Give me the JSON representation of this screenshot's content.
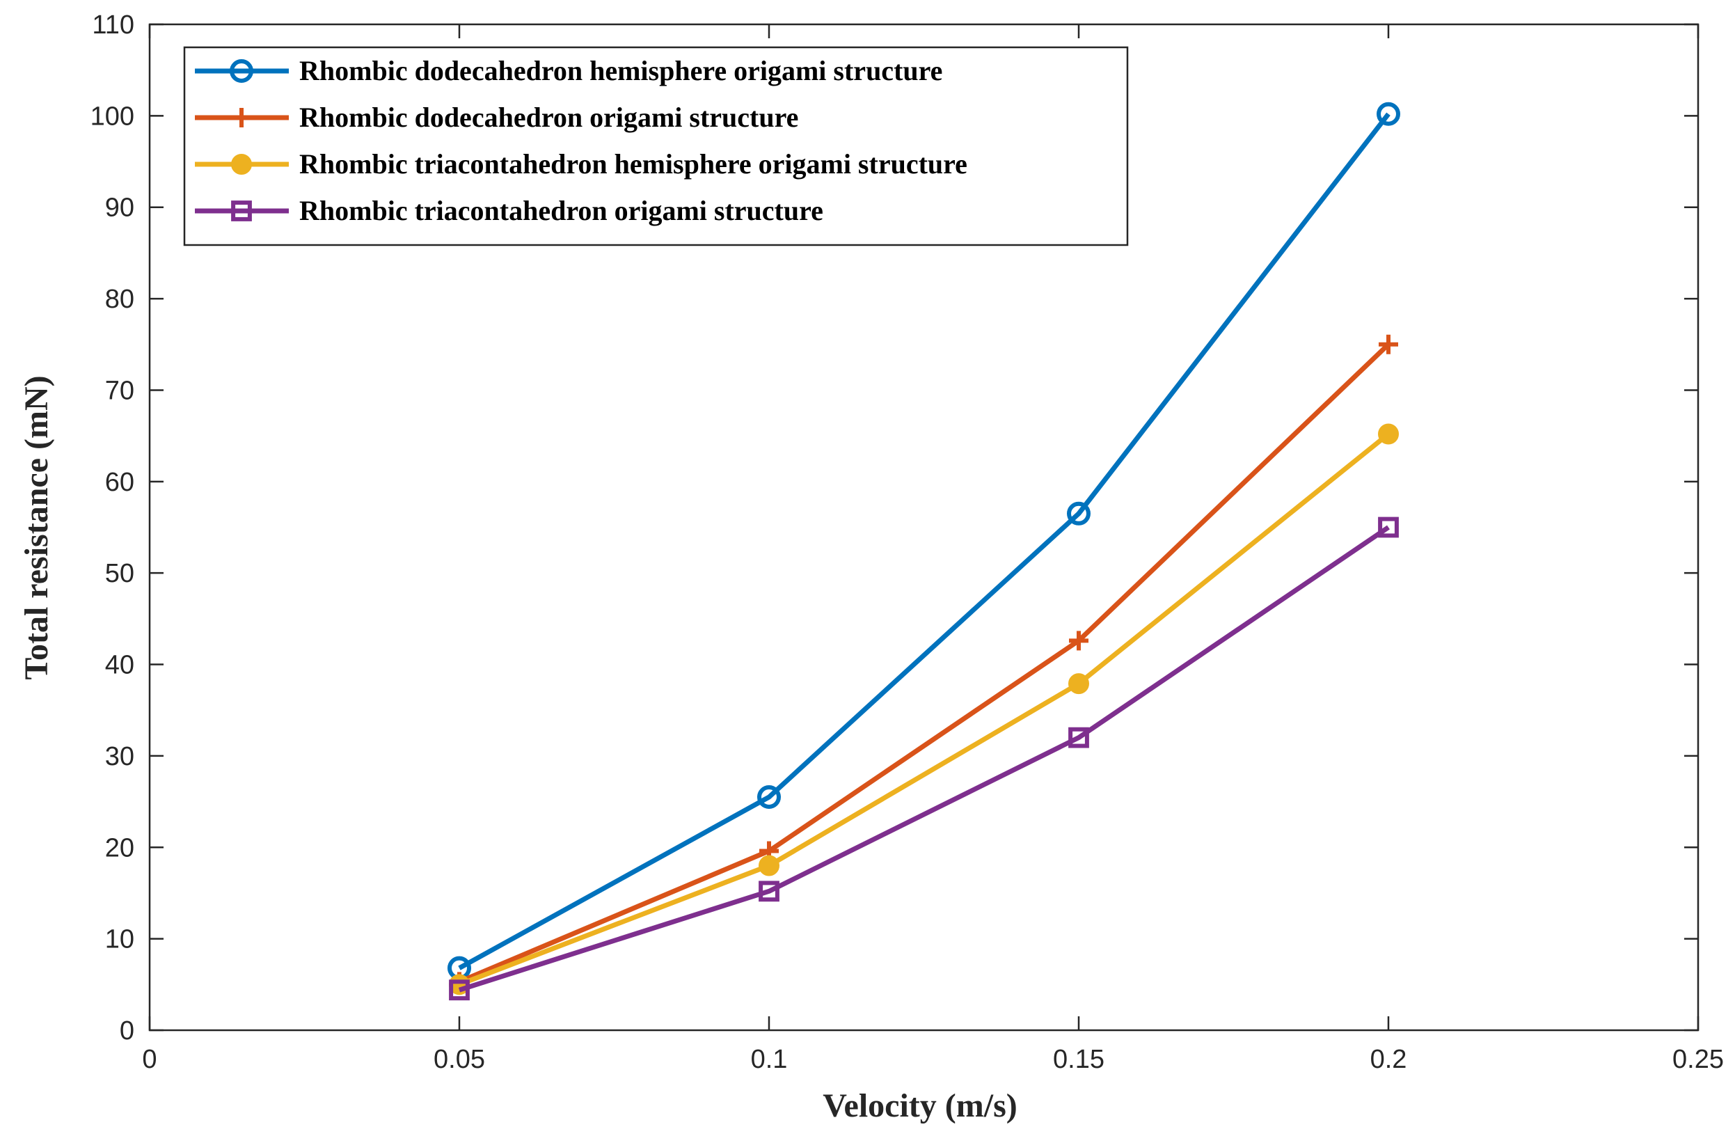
{
  "chart_data": {
    "type": "line",
    "title": "",
    "xlabel": "Velocity (m/s)",
    "ylabel": "Total resistance (mN)",
    "xlim": [
      0,
      0.25
    ],
    "ylim": [
      0,
      110
    ],
    "xticks": [
      0,
      0.05,
      0.1,
      0.15,
      0.2,
      0.25
    ],
    "xtick_labels": [
      "0",
      "0.05",
      "0.1",
      "0.15",
      "0.2",
      "0.25"
    ],
    "yticks": [
      0,
      10,
      20,
      30,
      40,
      50,
      60,
      70,
      80,
      90,
      100,
      110
    ],
    "ytick_labels": [
      "0",
      "10",
      "20",
      "30",
      "40",
      "50",
      "60",
      "70",
      "80",
      "90",
      "100",
      "110"
    ],
    "grid": false,
    "legend_position": "top-left",
    "x": [
      0.05,
      0.1,
      0.15,
      0.2
    ],
    "series": [
      {
        "name": "Rhombic dodecahedron hemisphere origami structure",
        "marker": "circle-open",
        "color": "#0072BD",
        "values": [
          6.8,
          25.5,
          56.5,
          100.2
        ]
      },
      {
        "name": "Rhombic dodecahedron origami structure",
        "marker": "plus",
        "color": "#D95319",
        "values": [
          5.3,
          19.6,
          42.6,
          75.0
        ]
      },
      {
        "name": "Rhombic triacontahedron hemisphere origami structure",
        "marker": "circle-filled",
        "color": "#EDB120",
        "values": [
          5.0,
          18.0,
          37.9,
          65.2
        ]
      },
      {
        "name": "Rhombic triacontahedron origami structure",
        "marker": "square",
        "color": "#7E2F8E",
        "values": [
          4.4,
          15.2,
          32.0,
          55.0
        ]
      }
    ]
  }
}
